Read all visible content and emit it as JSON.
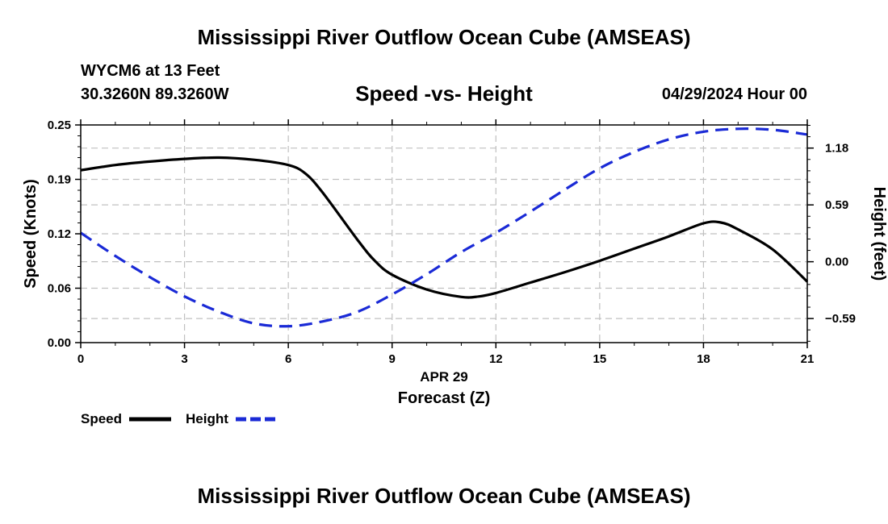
{
  "header": {
    "title": "Mississippi River Outflow Ocean Cube (AMSEAS)",
    "station": "WYCM6 at 13 Feet",
    "coords": "30.3260N  89.3260W",
    "subtitle": "Speed -vs- Height",
    "date": "04/29/2024 Hour 00"
  },
  "footer": {
    "title": "Mississippi River Outflow Ocean Cube (AMSEAS)"
  },
  "chart_data": {
    "type": "line",
    "title": "Speed -vs- Height",
    "xlabel": "Forecast (Z)",
    "xlabel_date": "APR 29",
    "ylabel": "Speed (Knots)",
    "y2label": "Height (feet)",
    "xlim": [
      0,
      21
    ],
    "ylim": [
      0,
      0.25
    ],
    "y2lim": [
      -0.84,
      1.42
    ],
    "grid": true,
    "x_ticks": [
      0,
      3,
      6,
      9,
      12,
      15,
      18,
      21
    ],
    "x_tick_labels": [
      "0",
      "3",
      "6",
      "9",
      "12",
      "15",
      "18",
      "21"
    ],
    "y_ticks": [
      0,
      0.0625,
      0.125,
      0.1875,
      0.25
    ],
    "y_tick_labels": [
      "0.00",
      "0.06",
      "0.12",
      "0.19",
      "0.25"
    ],
    "y2_ticks": [
      -0.59,
      0.0,
      0.59,
      1.18
    ],
    "y2_tick_labels": [
      "−0.59",
      "0.00",
      "0.59",
      "1.18"
    ],
    "series": [
      {
        "name": "Speed",
        "axis": "left",
        "color": "#000000",
        "style": "solid",
        "x": [
          0,
          1,
          2,
          3,
          4,
          5,
          6,
          6.5,
          7,
          8,
          8.5,
          9,
          10,
          11,
          11.5,
          12,
          13,
          14,
          15,
          16,
          17,
          18,
          18.5,
          19,
          20,
          21
        ],
        "y": [
          0.198,
          0.204,
          0.208,
          0.211,
          0.2125,
          0.21,
          0.204,
          0.194,
          0.172,
          0.118,
          0.094,
          0.078,
          0.061,
          0.0525,
          0.053,
          0.057,
          0.069,
          0.081,
          0.094,
          0.108,
          0.122,
          0.137,
          0.138,
          0.13,
          0.107,
          0.07
        ]
      },
      {
        "name": "Height",
        "axis": "right",
        "color": "#1a2ad6",
        "style": "dashed",
        "x": [
          0,
          1,
          2,
          3,
          4,
          5,
          6,
          7,
          8,
          9,
          10,
          11,
          12,
          13,
          14,
          15,
          16,
          17,
          18,
          19,
          20,
          21
        ],
        "y": [
          0.3,
          0.06,
          -0.16,
          -0.36,
          -0.52,
          -0.64,
          -0.67,
          -0.62,
          -0.52,
          -0.34,
          -0.13,
          0.1,
          0.3,
          0.52,
          0.75,
          0.97,
          1.14,
          1.27,
          1.35,
          1.38,
          1.37,
          1.32
        ]
      }
    ],
    "legend": [
      {
        "label": "Speed",
        "color": "#000000",
        "style": "solid"
      },
      {
        "label": "Height",
        "color": "#1a2ad6",
        "style": "dashed"
      }
    ],
    "legend_position": "bottom-left"
  }
}
